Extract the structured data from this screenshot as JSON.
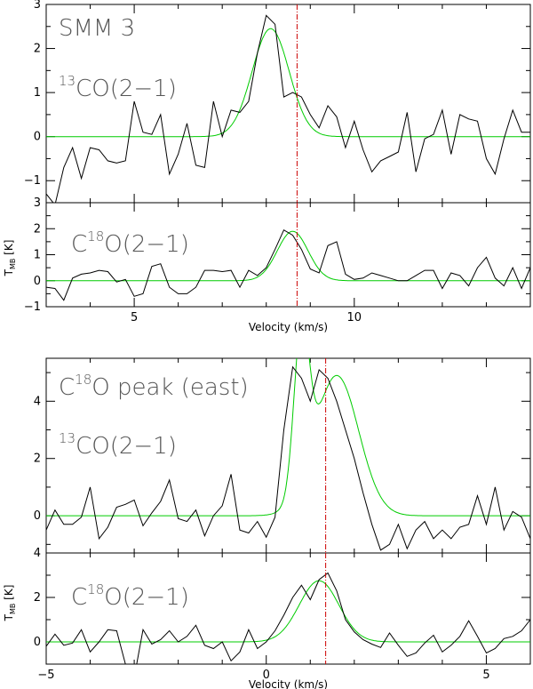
{
  "figure": {
    "xlabel_velocity": "Velocity (km/s)",
    "ylabel_tmb": "T",
    "ylabel_tmb_sub": "MB",
    "ylabel_unit": "[K]"
  },
  "chart_data": [
    {
      "type": "line",
      "title": "SMM 3",
      "line_label": {
        "sup": "13",
        "text": "CO(2−1)"
      },
      "xlim": [
        3,
        14
      ],
      "ylim": [
        -1.5,
        3
      ],
      "yticks": [
        -1,
        0,
        1,
        2,
        3
      ],
      "ytick_labels": [
        "−1",
        "0",
        "1",
        "2",
        "3"
      ],
      "xticks": [
        5,
        10
      ],
      "xtick_labels": [
        "",
        ""
      ],
      "xlabel": "",
      "vline": 8.7,
      "colors": {
        "obs": "#000000",
        "fit": "#00cc00",
        "vline": "#cc0000"
      },
      "fit": {
        "amp": 2.45,
        "center": 8.1,
        "sigma": 0.42
      },
      "series": [
        {
          "x": [
            3.0,
            3.2,
            3.4,
            3.6,
            3.8,
            4.0,
            4.2,
            4.4,
            4.6,
            4.8,
            5.0,
            5.2,
            5.4,
            5.6,
            5.8,
            6.0,
            6.2,
            6.4,
            6.6,
            6.8,
            7.0,
            7.2,
            7.4,
            7.6,
            7.8,
            8.0,
            8.2,
            8.4,
            8.6,
            8.8,
            9.0,
            9.2,
            9.4,
            9.6,
            9.8,
            10.0,
            10.2,
            10.4,
            10.6,
            10.8,
            11.0,
            11.2,
            11.4,
            11.6,
            11.8,
            12.0,
            12.2,
            12.4,
            12.6,
            12.8,
            13.0,
            13.2,
            13.4,
            13.6,
            13.8,
            14.0
          ],
          "values": [
            -1.3,
            -1.55,
            -0.7,
            -0.25,
            -0.95,
            -0.25,
            -0.3,
            -0.55,
            -0.6,
            -0.55,
            0.8,
            0.1,
            0.05,
            0.5,
            -0.85,
            -0.4,
            0.3,
            -0.65,
            -0.7,
            0.8,
            0.0,
            0.6,
            0.55,
            0.8,
            1.9,
            2.75,
            2.55,
            0.9,
            1.0,
            0.9,
            0.5,
            0.2,
            0.7,
            0.45,
            -0.25,
            0.35,
            -0.3,
            -0.8,
            -0.55,
            -0.45,
            -0.35,
            0.55,
            -0.8,
            -0.05,
            0.05,
            0.6,
            -0.4,
            0.5,
            0.4,
            0.35,
            -0.5,
            -0.85,
            -0.05,
            0.6,
            0.1,
            0.1
          ]
        }
      ]
    },
    {
      "type": "line",
      "line_label": {
        "sup": "18",
        "text": "C",
        "after": "O(2−1)"
      },
      "xlim": [
        3,
        14
      ],
      "ylim": [
        -1,
        3
      ],
      "yticks": [
        -1,
        0,
        1,
        2,
        3
      ],
      "ytick_labels": [
        "−1",
        "0",
        "1",
        "2",
        "3"
      ],
      "xticks": [
        5,
        10
      ],
      "xtick_labels": [
        "5",
        "10"
      ],
      "xlabel": "Velocity (km/s)",
      "vline": 8.7,
      "colors": {
        "obs": "#000000",
        "fit": "#00cc00",
        "vline": "#cc0000"
      },
      "fit": {
        "amp": 1.9,
        "center": 8.6,
        "sigma": 0.35
      },
      "series": [
        {
          "x": [
            3.0,
            3.2,
            3.4,
            3.6,
            3.8,
            4.0,
            4.2,
            4.4,
            4.6,
            4.8,
            5.0,
            5.2,
            5.4,
            5.6,
            5.8,
            6.0,
            6.2,
            6.4,
            6.6,
            6.8,
            7.0,
            7.2,
            7.4,
            7.6,
            7.8,
            8.0,
            8.2,
            8.4,
            8.6,
            8.8,
            9.0,
            9.2,
            9.4,
            9.6,
            9.8,
            10.0,
            10.2,
            10.4,
            10.6,
            10.8,
            11.0,
            11.2,
            11.4,
            11.6,
            11.8,
            12.0,
            12.2,
            12.4,
            12.6,
            12.8,
            13.0,
            13.2,
            13.4,
            13.6,
            13.8,
            14.0
          ],
          "values": [
            -0.25,
            -0.3,
            -0.75,
            0.1,
            0.25,
            0.3,
            0.4,
            0.35,
            -0.05,
            0.05,
            -0.6,
            -0.5,
            0.55,
            0.65,
            -0.25,
            -0.5,
            -0.5,
            -0.25,
            0.4,
            0.4,
            0.35,
            0.4,
            -0.25,
            0.4,
            0.2,
            0.5,
            1.2,
            1.95,
            1.75,
            1.2,
            0.45,
            0.3,
            1.35,
            1.5,
            0.25,
            0.05,
            0.1,
            0.3,
            0.2,
            0.1,
            0.0,
            0.0,
            0.2,
            0.4,
            0.4,
            -0.3,
            0.3,
            0.2,
            -0.2,
            0.5,
            0.9,
            0.1,
            -0.2,
            0.5,
            -0.3,
            0.5
          ]
        }
      ]
    },
    {
      "type": "line",
      "title": "C¹⁸O peak (east)",
      "title_parts": {
        "pre": "C",
        "sup": "18",
        "post": "O peak (east)"
      },
      "line_label": {
        "sup": "13",
        "text": "CO(2−1)"
      },
      "xlim": [
        -5,
        6
      ],
      "ylim": [
        -1.3,
        5.5
      ],
      "yticks": [
        0,
        2,
        4
      ],
      "ytick_labels": [
        "0",
        "2",
        "4"
      ],
      "xticks": [
        -5,
        0,
        5
      ],
      "xtick_labels": [
        "",
        "",
        ""
      ],
      "xlabel": "",
      "vline": 1.35,
      "colors": {
        "obs": "#000000",
        "fit": "#00cc00",
        "vline": "#cc0000"
      },
      "fit_components": [
        {
          "amp": 5.6,
          "center": 0.8,
          "sigma": 0.17
        },
        {
          "amp": 4.9,
          "center": 1.6,
          "sigma": 0.5
        }
      ],
      "series": [
        {
          "x": [
            -5.0,
            -4.8,
            -4.6,
            -4.4,
            -4.2,
            -4.0,
            -3.8,
            -3.6,
            -3.4,
            -3.2,
            -3.0,
            -2.8,
            -2.6,
            -2.4,
            -2.2,
            -2.0,
            -1.8,
            -1.6,
            -1.4,
            -1.2,
            -1.0,
            -0.8,
            -0.6,
            -0.4,
            -0.2,
            0.0,
            0.2,
            0.4,
            0.6,
            0.8,
            1.0,
            1.2,
            1.4,
            1.6,
            1.8,
            2.0,
            2.2,
            2.4,
            2.6,
            2.8,
            3.0,
            3.2,
            3.4,
            3.6,
            3.8,
            4.0,
            4.2,
            4.4,
            4.6,
            4.8,
            5.0,
            5.2,
            5.4,
            5.6,
            5.8,
            6.0
          ],
          "values": [
            -0.5,
            0.2,
            -0.3,
            -0.3,
            -0.05,
            1.0,
            -0.8,
            -0.4,
            0.3,
            0.4,
            0.55,
            -0.35,
            0.1,
            0.5,
            1.25,
            -0.1,
            -0.2,
            0.2,
            -0.7,
            0.0,
            0.35,
            1.45,
            -0.5,
            -0.6,
            -0.2,
            -0.75,
            -0.05,
            3.0,
            5.2,
            4.8,
            4.0,
            5.1,
            4.8,
            4.0,
            3.0,
            2.0,
            0.8,
            -0.3,
            -1.2,
            -1.0,
            -0.3,
            -1.15,
            -0.5,
            -0.2,
            -0.8,
            -0.5,
            -0.8,
            -0.4,
            -0.3,
            0.7,
            -0.3,
            1.0,
            -0.5,
            0.15,
            -0.05,
            -0.8
          ]
        }
      ]
    },
    {
      "type": "line",
      "line_label": {
        "sup": "18",
        "text": "C",
        "after": "O(2−1)"
      },
      "xlim": [
        -5,
        6
      ],
      "ylim": [
        -1,
        4
      ],
      "yticks": [
        0,
        2,
        4
      ],
      "ytick_labels": [
        "0",
        "2",
        "4"
      ],
      "xticks": [
        -5,
        0,
        5
      ],
      "xtick_labels": [
        "−5",
        "0",
        "5"
      ],
      "xlabel": "Velocity (km/s)",
      "vline": 1.35,
      "colors": {
        "obs": "#000000",
        "fit": "#00cc00",
        "vline": "#cc0000"
      },
      "fit": {
        "amp": 2.75,
        "center": 1.2,
        "sigma": 0.45
      },
      "series": [
        {
          "x": [
            -5.0,
            -4.8,
            -4.6,
            -4.4,
            -4.2,
            -4.0,
            -3.8,
            -3.6,
            -3.4,
            -3.2,
            -3.0,
            -2.8,
            -2.6,
            -2.4,
            -2.2,
            -2.0,
            -1.8,
            -1.6,
            -1.4,
            -1.2,
            -1.0,
            -0.8,
            -0.6,
            -0.4,
            -0.2,
            0.0,
            0.2,
            0.4,
            0.6,
            0.8,
            1.0,
            1.2,
            1.4,
            1.6,
            1.8,
            2.0,
            2.2,
            2.4,
            2.6,
            2.8,
            3.0,
            3.2,
            3.4,
            3.6,
            3.8,
            4.0,
            4.2,
            4.4,
            4.6,
            4.8,
            5.0,
            5.2,
            5.4,
            5.6,
            5.8,
            6.0
          ],
          "values": [
            -0.2,
            0.35,
            -0.15,
            -0.05,
            0.55,
            -0.45,
            0.0,
            0.55,
            0.5,
            -1.0,
            -1.6,
            0.55,
            -0.1,
            0.1,
            0.5,
            0.0,
            0.25,
            0.75,
            -0.15,
            -0.3,
            0.0,
            -0.85,
            -0.45,
            0.55,
            -0.3,
            0.0,
            0.5,
            1.2,
            2.0,
            2.55,
            1.9,
            2.8,
            3.1,
            2.3,
            1.0,
            0.45,
            0.1,
            -0.1,
            -0.25,
            0.4,
            -0.15,
            -0.65,
            -0.5,
            -0.05,
            0.3,
            -0.45,
            -0.15,
            0.25,
            0.95,
            0.25,
            -0.5,
            -0.3,
            0.15,
            0.25,
            0.5,
            1.0
          ]
        }
      ]
    }
  ]
}
